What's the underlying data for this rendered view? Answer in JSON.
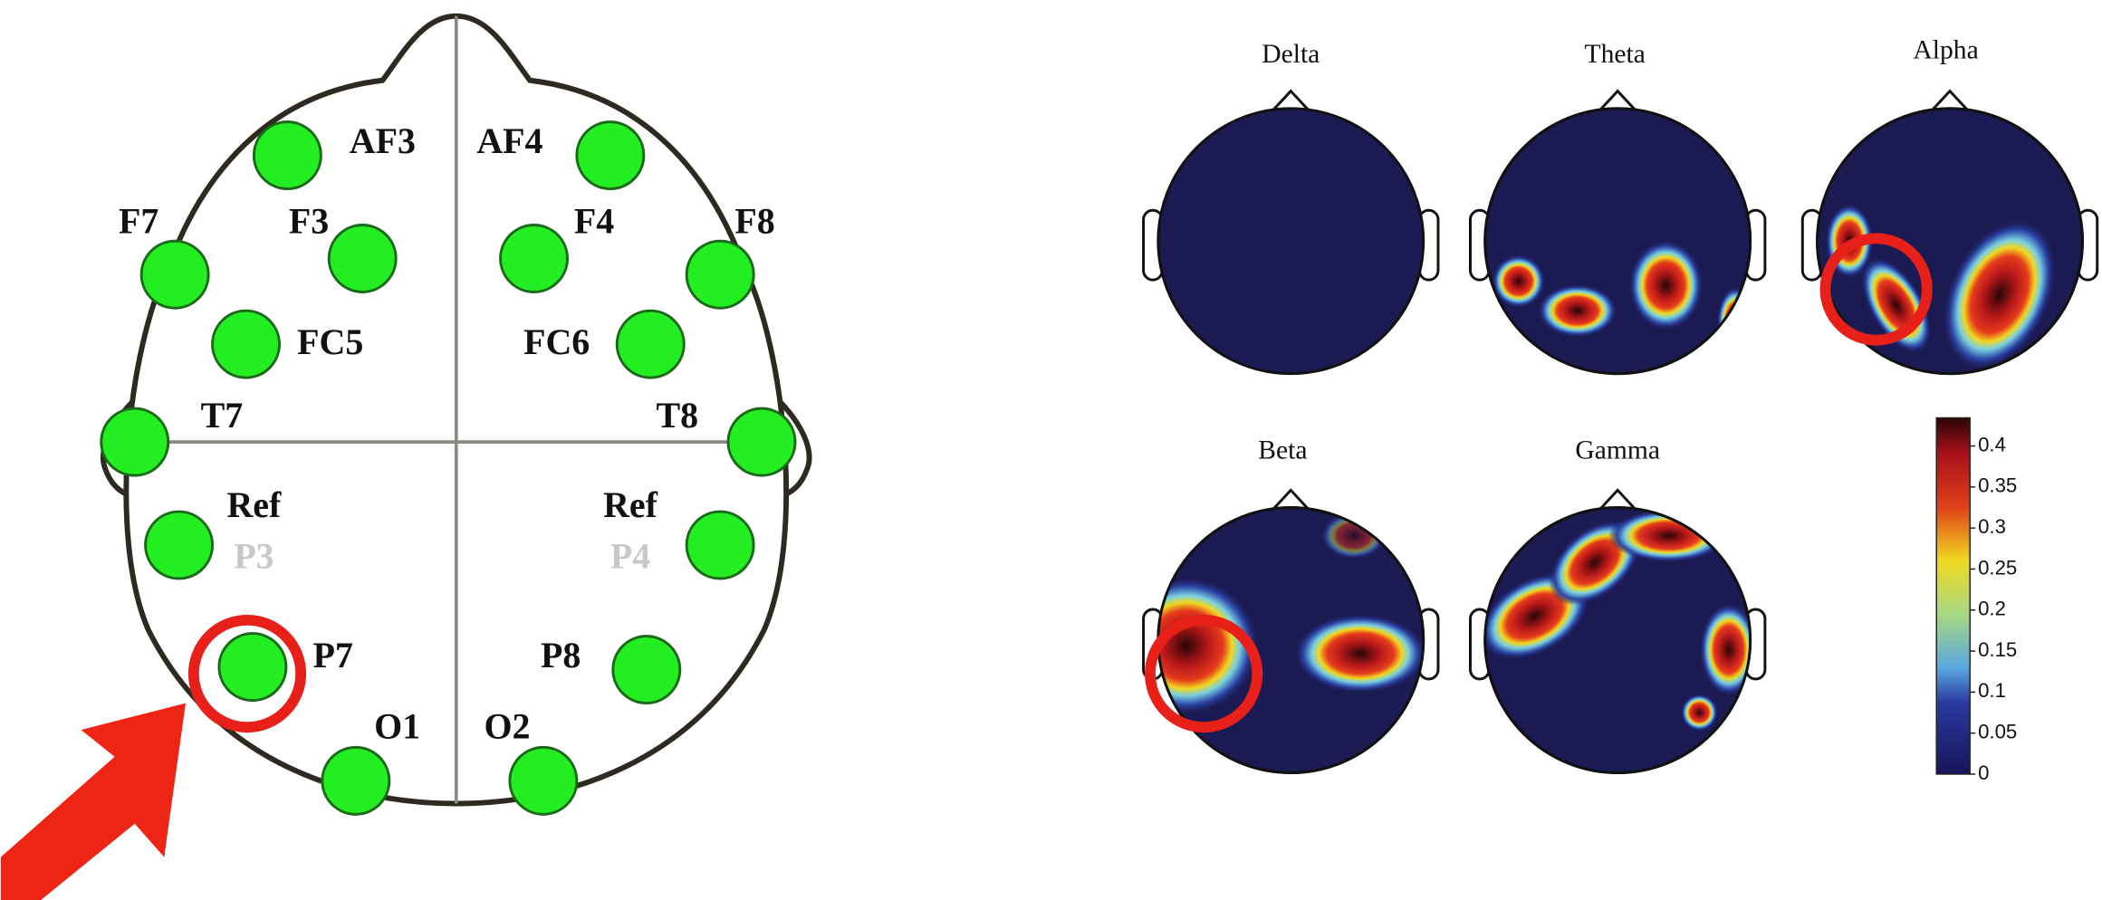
{
  "electrodes": {
    "AF3": "AF3",
    "AF4": "AF4",
    "F7": "F7",
    "F3": "F3",
    "F4": "F4",
    "F8": "F8",
    "FC5": "FC5",
    "FC6": "FC6",
    "T7": "T7",
    "T8": "T8",
    "ref_left": "Ref",
    "P3": "P3",
    "ref_right": "Ref",
    "P4": "P4",
    "P7": "P7",
    "P8": "P8",
    "O1": "O1",
    "O2": "O2"
  },
  "topomaps": [
    {
      "title": "Delta"
    },
    {
      "title": "Theta"
    },
    {
      "title": "Alpha"
    },
    {
      "title": "Beta"
    },
    {
      "title": "Gamma"
    }
  ],
  "colorbar": {
    "ticks": [
      0,
      0.05,
      0.1,
      0.15,
      0.2,
      0.25,
      0.3,
      0.35,
      0.4
    ]
  }
}
